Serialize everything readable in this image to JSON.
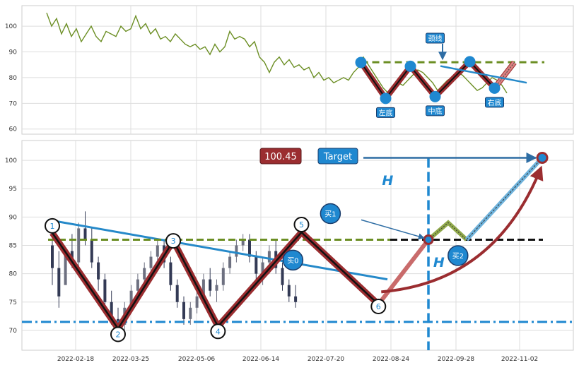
{
  "chart_data": [
    {
      "type": "line",
      "panel": "top",
      "ylim": [
        58,
        108
      ],
      "yticks": [
        60,
        70,
        80,
        90,
        100
      ],
      "grid": true,
      "line_color": "#6b8e23",
      "series_points": [
        [
          0,
          105.2
        ],
        [
          1,
          100
        ],
        [
          2,
          103
        ],
        [
          3,
          97
        ],
        [
          4,
          101
        ],
        [
          5,
          96
        ],
        [
          6,
          99
        ],
        [
          7,
          94
        ],
        [
          8,
          97
        ],
        [
          9,
          100
        ],
        [
          10,
          96
        ],
        [
          11,
          94
        ],
        [
          12,
          98
        ],
        [
          13,
          97
        ],
        [
          14,
          96
        ],
        [
          15,
          100
        ],
        [
          16,
          98
        ],
        [
          17,
          99
        ],
        [
          18,
          104
        ],
        [
          19,
          99
        ],
        [
          20,
          101
        ],
        [
          21,
          97
        ],
        [
          22,
          99
        ],
        [
          23,
          95
        ],
        [
          24,
          96
        ],
        [
          25,
          94
        ],
        [
          26,
          97
        ],
        [
          27,
          95
        ],
        [
          28,
          93
        ],
        [
          29,
          92
        ],
        [
          30,
          93
        ],
        [
          31,
          91
        ],
        [
          32,
          92
        ],
        [
          33,
          89
        ],
        [
          34,
          93
        ],
        [
          35,
          90
        ],
        [
          36,
          92
        ],
        [
          37,
          98
        ],
        [
          38,
          95
        ],
        [
          39,
          96
        ],
        [
          40,
          95
        ],
        [
          41,
          92
        ],
        [
          42,
          94
        ],
        [
          43,
          88
        ],
        [
          44,
          86
        ],
        [
          45,
          82
        ],
        [
          46,
          86
        ],
        [
          47,
          88
        ],
        [
          48,
          85
        ],
        [
          49,
          87
        ],
        [
          50,
          84
        ],
        [
          51,
          85
        ],
        [
          52,
          83
        ],
        [
          53,
          84
        ],
        [
          54,
          80
        ],
        [
          55,
          82
        ],
        [
          56,
          79
        ],
        [
          57,
          80
        ],
        [
          58,
          78
        ],
        [
          59,
          79
        ],
        [
          60,
          80
        ],
        [
          61,
          79
        ],
        [
          62,
          82
        ],
        [
          63,
          84
        ],
        [
          64,
          88
        ],
        [
          65,
          85
        ],
        [
          66,
          82
        ],
        [
          67,
          79
        ],
        [
          68,
          76
        ],
        [
          69,
          74
        ],
        [
          70,
          76
        ],
        [
          71,
          78
        ],
        [
          72,
          77
        ],
        [
          73,
          79
        ],
        [
          74,
          81
        ],
        [
          75,
          83
        ],
        [
          76,
          82
        ],
        [
          77,
          80
        ],
        [
          78,
          78
        ],
        [
          79,
          75
        ],
        [
          80,
          77
        ],
        [
          81,
          79
        ],
        [
          82,
          80
        ],
        [
          83,
          82
        ],
        [
          84,
          81
        ],
        [
          85,
          79
        ],
        [
          86,
          77
        ],
        [
          87,
          75
        ],
        [
          88,
          76
        ],
        [
          89,
          78
        ],
        [
          90,
          80
        ],
        [
          91,
          79
        ],
        [
          92,
          77
        ],
        [
          93,
          74
        ]
      ],
      "pattern_points": [
        {
          "x": 63.5,
          "y": 85.9
        },
        {
          "x": 68.5,
          "y": 71.9
        },
        {
          "x": 73.5,
          "y": 84.4
        },
        {
          "x": 78.5,
          "y": 72.6
        },
        {
          "x": 85.5,
          "y": 86.2
        },
        {
          "x": 90.5,
          "y": 75.9
        },
        {
          "x": 94.5,
          "y": 85.9
        }
      ],
      "neckline_y": 86,
      "labels": [
        {
          "text": "左底",
          "x": 68.5,
          "y": 71.9
        },
        {
          "text": "中底",
          "x": 78.5,
          "y": 72.6
        },
        {
          "text": "右底",
          "x": 90.5,
          "y": 75.9
        },
        {
          "text": "颈线",
          "x": 78.5,
          "y": 94
        }
      ]
    },
    {
      "type": "candlestick",
      "panel": "bottom",
      "ylim": [
        66.5,
        103.5
      ],
      "yticks": [
        70,
        75,
        80,
        85,
        90,
        95,
        100
      ],
      "xticks": [
        "2022-02-18",
        "2022-03-25",
        "2022-05-06",
        "2022-06-14",
        "2022-07-20",
        "2022-08-24",
        "2022-09-28",
        "2022-11-02"
      ],
      "grid": true,
      "candles": [
        [
          0,
          85,
          86,
          81,
          78,
          "bear"
        ],
        [
          1,
          81,
          84,
          76,
          74,
          "bear"
        ],
        [
          2,
          78,
          83,
          84,
          80,
          "bull"
        ],
        [
          3,
          84,
          87,
          82,
          81,
          "bear"
        ],
        [
          4,
          82,
          89,
          88,
          81,
          "bull"
        ],
        [
          5,
          88,
          91,
          86,
          85,
          "bear"
        ],
        [
          6,
          86,
          88,
          82,
          81,
          "bear"
        ],
        [
          7,
          82,
          83,
          79,
          77,
          "bear"
        ],
        [
          8,
          79,
          80,
          75,
          74,
          "bear"
        ],
        [
          9,
          75,
          77,
          72,
          71,
          "bear"
        ],
        [
          10,
          72,
          74,
          71,
          70,
          "bear"
        ],
        [
          11,
          71,
          75,
          74,
          70,
          "bull"
        ],
        [
          12,
          74,
          78,
          77,
          73,
          "bull"
        ],
        [
          13,
          77,
          80,
          79,
          75,
          "bull"
        ],
        [
          14,
          79,
          82,
          81,
          78,
          "bull"
        ],
        [
          15,
          81,
          84,
          83,
          80,
          "bull"
        ],
        [
          16,
          83,
          86,
          85,
          82,
          "bull"
        ],
        [
          17,
          85,
          86,
          82,
          81,
          "bear"
        ],
        [
          18,
          82,
          83,
          78,
          77,
          "bear"
        ],
        [
          19,
          78,
          79,
          75,
          74,
          "bear"
        ],
        [
          20,
          75,
          76,
          72,
          71,
          "bear"
        ],
        [
          21,
          72,
          75,
          74,
          71,
          "bull"
        ],
        [
          22,
          74,
          77,
          76,
          73,
          "bull"
        ],
        [
          23,
          76,
          80,
          79,
          75,
          "bull"
        ],
        [
          24,
          79,
          81,
          77,
          76,
          "bear"
        ],
        [
          25,
          77,
          79,
          78,
          75,
          "bull"
        ],
        [
          26,
          78,
          82,
          81,
          77,
          "bull"
        ],
        [
          27,
          81,
          84,
          83,
          80,
          "bull"
        ],
        [
          28,
          83,
          86,
          85,
          82,
          "bull"
        ],
        [
          29,
          85,
          87,
          86,
          84,
          "bull"
        ],
        [
          30,
          86,
          87,
          83,
          82,
          "bear"
        ],
        [
          31,
          83,
          84,
          80,
          79,
          "bear"
        ],
        [
          32,
          80,
          83,
          82,
          78,
          "bull"
        ],
        [
          33,
          82,
          85,
          84,
          80,
          "bull"
        ],
        [
          34,
          84,
          86,
          81,
          80,
          "bear"
        ],
        [
          35,
          81,
          82,
          78,
          77,
          "bear"
        ],
        [
          36,
          78,
          79,
          76,
          75,
          "bear"
        ],
        [
          37,
          76,
          78,
          75,
          74,
          "bear"
        ]
      ],
      "pattern_points": [
        {
          "label": "1",
          "x": 0,
          "y": 87.2
        },
        {
          "label": "2",
          "x": 10,
          "y": 70.3
        },
        {
          "label": "3",
          "x": 18.4,
          "y": 85.8
        },
        {
          "label": "4",
          "x": 25.2,
          "y": 70.7
        },
        {
          "label": "5",
          "x": 37.9,
          "y": 87.3
        },
        {
          "label": "6",
          "x": 49.6,
          "y": 74.6
        }
      ],
      "neckline_y": 86,
      "support_y": 71.5,
      "target": {
        "label": "Target",
        "value": "100.45"
      },
      "annotations": [
        {
          "text": "买0",
          "x": 36.6,
          "y": 82.4
        },
        {
          "text": "买1",
          "x": 42.3,
          "y": 90.6
        },
        {
          "text": "买2",
          "x": 61.7,
          "y": 83.2
        },
        {
          "text": "H",
          "x": 51,
          "y": 96.5
        },
        {
          "text": "H",
          "x": 58.8,
          "y": 82.1
        }
      ]
    }
  ]
}
